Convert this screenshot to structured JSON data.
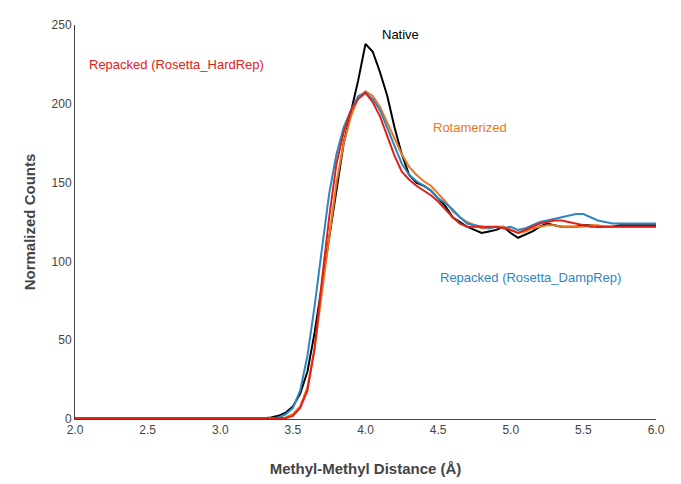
{
  "chart_data": {
    "type": "line",
    "xlabel": "Methyl-Methyl Distance (Å)",
    "ylabel": "Normalized Counts",
    "xlim": [
      2.0,
      6.0
    ],
    "ylim": [
      0,
      250
    ],
    "xticks": [
      {
        "value": 2.0,
        "label": "2.0"
      },
      2.5,
      {
        "value": 3.0,
        "label": "3.0"
      },
      3.5,
      {
        "value": 4.0,
        "label": "4.0"
      },
      4.5,
      {
        "value": 5.0,
        "label": "5.0"
      },
      5.5,
      {
        "value": 6.0,
        "label": "6.0"
      }
    ],
    "yticks": [
      0,
      50,
      100,
      150,
      200,
      250
    ],
    "grid": false,
    "x": [
      2.0,
      2.05,
      2.1,
      2.15,
      2.2,
      2.25,
      2.3,
      2.35,
      2.4,
      2.45,
      2.5,
      2.55,
      2.6,
      2.65,
      2.7,
      2.75,
      2.8,
      2.85,
      2.9,
      2.95,
      3.0,
      3.05,
      3.1,
      3.15,
      3.2,
      3.25,
      3.3,
      3.35,
      3.4,
      3.45,
      3.5,
      3.55,
      3.6,
      3.65,
      3.7,
      3.75,
      3.8,
      3.85,
      3.9,
      3.95,
      4.0,
      4.05,
      4.1,
      4.15,
      4.2,
      4.25,
      4.3,
      4.35,
      4.4,
      4.45,
      4.5,
      4.55,
      4.6,
      4.65,
      4.7,
      4.75,
      4.8,
      4.85,
      4.9,
      4.95,
      5.0,
      5.05,
      5.1,
      5.15,
      5.2,
      5.25,
      5.3,
      5.35,
      5.4,
      5.45,
      5.5,
      5.55,
      5.6,
      5.65,
      5.7,
      5.75,
      5.8,
      5.85,
      5.9,
      5.95,
      6.0
    ],
    "series": [
      {
        "name": "Native",
        "color": "#000000",
        "values": [
          0.5,
          0.5,
          0.5,
          0.5,
          0.5,
          0.5,
          0.5,
          0.5,
          0.5,
          0.5,
          0.5,
          0.5,
          0.5,
          0.5,
          0.5,
          0.5,
          0.5,
          0.5,
          0.5,
          0.5,
          0.5,
          0.5,
          0.5,
          0.5,
          0.5,
          0.5,
          0.5,
          1.0,
          2.0,
          4.0,
          8.0,
          16.0,
          30.0,
          55.0,
          85.0,
          115.0,
          148.0,
          175.0,
          195.0,
          215.0,
          238.0,
          233.0,
          220.0,
          205.0,
          185.0,
          168.0,
          155.0,
          150.0,
          148.0,
          145.0,
          140.0,
          135.0,
          128.0,
          125.0,
          122.0,
          120.0,
          118.0,
          119.0,
          120.0,
          122.0,
          118.0,
          115.0,
          117.0,
          119.0,
          122.0,
          124.0,
          123.0,
          122.0,
          122.0,
          122.0,
          123.0,
          123.0,
          122.0,
          122.0,
          122.0,
          123.0,
          123.0,
          123.0,
          123.0,
          123.0,
          123.0
        ]
      },
      {
        "name": "Rotamerized",
        "color": "#E87722",
        "values": [
          0.5,
          0.5,
          0.5,
          0.5,
          0.5,
          0.5,
          0.5,
          0.5,
          0.5,
          0.5,
          0.5,
          0.5,
          0.5,
          0.5,
          0.5,
          0.5,
          0.5,
          0.5,
          0.5,
          0.5,
          0.5,
          0.5,
          0.5,
          0.5,
          0.5,
          0.5,
          0.5,
          0.5,
          0.5,
          1.0,
          3.0,
          8.0,
          20.0,
          45.0,
          80.0,
          115.0,
          150.0,
          175.0,
          192.0,
          204.0,
          208.0,
          205.0,
          198.0,
          188.0,
          178.0,
          168.0,
          160.0,
          155.0,
          151.0,
          148.0,
          143.0,
          138.0,
          132.0,
          128.0,
          125.0,
          123.0,
          121.0,
          121.0,
          122.0,
          122.0,
          120.0,
          118.0,
          119.0,
          121.0,
          122.0,
          123.0,
          123.0,
          122.0,
          122.0,
          122.0,
          122.0,
          123.0,
          123.0,
          122.0,
          122.0,
          122.0,
          122.0,
          122.0,
          122.0,
          122.0,
          122.0
        ]
      },
      {
        "name": "Repacked (Rosetta_DampRep)",
        "color": "#2E86C1",
        "values": [
          0.5,
          0.5,
          0.5,
          0.5,
          0.5,
          0.5,
          0.5,
          0.5,
          0.5,
          0.5,
          0.5,
          0.5,
          0.5,
          0.5,
          0.5,
          0.5,
          0.5,
          0.5,
          0.5,
          0.5,
          0.5,
          0.5,
          0.5,
          0.5,
          0.5,
          0.5,
          0.5,
          0.5,
          1.0,
          3.0,
          7.0,
          18.0,
          40.0,
          72.0,
          108.0,
          143.0,
          168.0,
          185.0,
          196.0,
          205.0,
          207.0,
          203.0,
          196.0,
          185.0,
          173.0,
          162.0,
          155.0,
          151.0,
          148.0,
          145.0,
          140.0,
          137.0,
          133.0,
          128.0,
          124.0,
          123.0,
          122.0,
          121.0,
          122.0,
          121.0,
          122.0,
          120.0,
          121.0,
          123.0,
          125.0,
          126.0,
          127.0,
          128.0,
          129.0,
          130.0,
          130.0,
          128.0,
          126.0,
          125.0,
          124.0,
          124.0,
          124.0,
          124.0,
          124.0,
          124.0,
          124.0
        ]
      },
      {
        "name": "Repacked (Rosetta_HardRep)",
        "color": "#E32017",
        "values": [
          0.5,
          0.5,
          0.5,
          0.5,
          0.5,
          0.5,
          0.5,
          0.5,
          0.5,
          0.5,
          0.5,
          0.5,
          0.5,
          0.5,
          0.5,
          0.5,
          0.5,
          0.5,
          0.5,
          0.5,
          0.5,
          0.5,
          0.5,
          0.5,
          0.5,
          0.5,
          0.5,
          0.5,
          0.5,
          0.5,
          2.0,
          7.0,
          18.0,
          45.0,
          88.0,
          128.0,
          162.0,
          182.0,
          196.0,
          203.0,
          207.0,
          201.0,
          192.0,
          180.0,
          167.0,
          157.0,
          152.0,
          148.0,
          145.0,
          142.0,
          138.0,
          133.0,
          128.0,
          124.0,
          122.0,
          122.0,
          122.0,
          122.0,
          122.0,
          121.0,
          120.0,
          118.0,
          120.0,
          122.0,
          124.0,
          125.0,
          126.0,
          126.0,
          125.0,
          124.0,
          123.0,
          122.0,
          122.0,
          122.0,
          122.0,
          122.0,
          122.0,
          122.0,
          122.0,
          122.0,
          122.0
        ]
      }
    ]
  }
}
